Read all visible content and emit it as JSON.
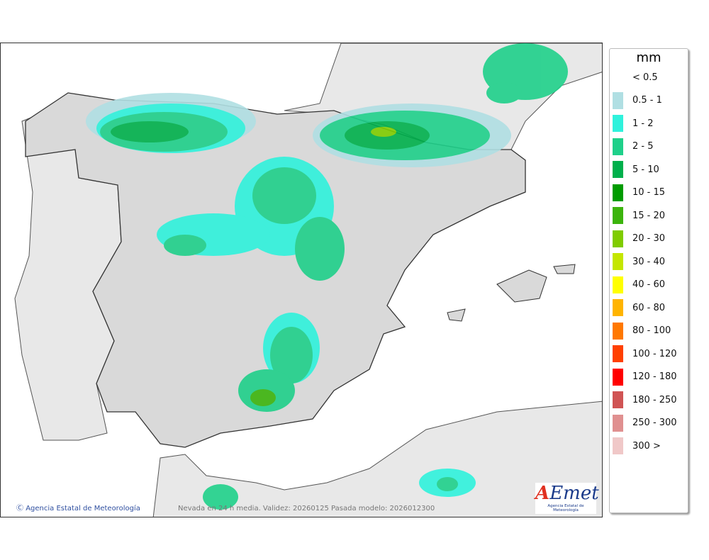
{
  "map": {
    "credit": "Agencia Estatal de Meteorología",
    "caption": "Nevada en 24 h media. Validez: 20260125 Pasada modelo: 2026012300",
    "logo": {
      "text": "AEmet",
      "subtitle": "Agencia Estatal de Meteorología"
    }
  },
  "legend": {
    "unit": "mm",
    "items": [
      {
        "label": "< 0.5",
        "color": null
      },
      {
        "label": "0.5 - 1",
        "color": "#b0dfe3"
      },
      {
        "label": "1 - 2",
        "color": "#2ff2dc"
      },
      {
        "label": "2 - 5",
        "color": "#1fd08a"
      },
      {
        "label": "5 - 10",
        "color": "#00b04c"
      },
      {
        "label": "10 - 15",
        "color": "#009c00"
      },
      {
        "label": "15 - 20",
        "color": "#3cb40c"
      },
      {
        "label": "20 - 30",
        "color": "#80cc00"
      },
      {
        "label": "30 - 40",
        "color": "#c4e600"
      },
      {
        "label": "40 - 60",
        "color": "#ffff00"
      },
      {
        "label": "60 - 80",
        "color": "#ffb400"
      },
      {
        "label": "80 - 100",
        "color": "#ff7800"
      },
      {
        "label": "100 - 120",
        "color": "#ff4000"
      },
      {
        "label": "120 - 180",
        "color": "#ff0000"
      },
      {
        "label": "180 - 250",
        "color": "#d05454"
      },
      {
        "label": "250 - 300",
        "color": "#e09090"
      },
      {
        "label": "300 >",
        "color": "#f0c8c8"
      }
    ]
  }
}
